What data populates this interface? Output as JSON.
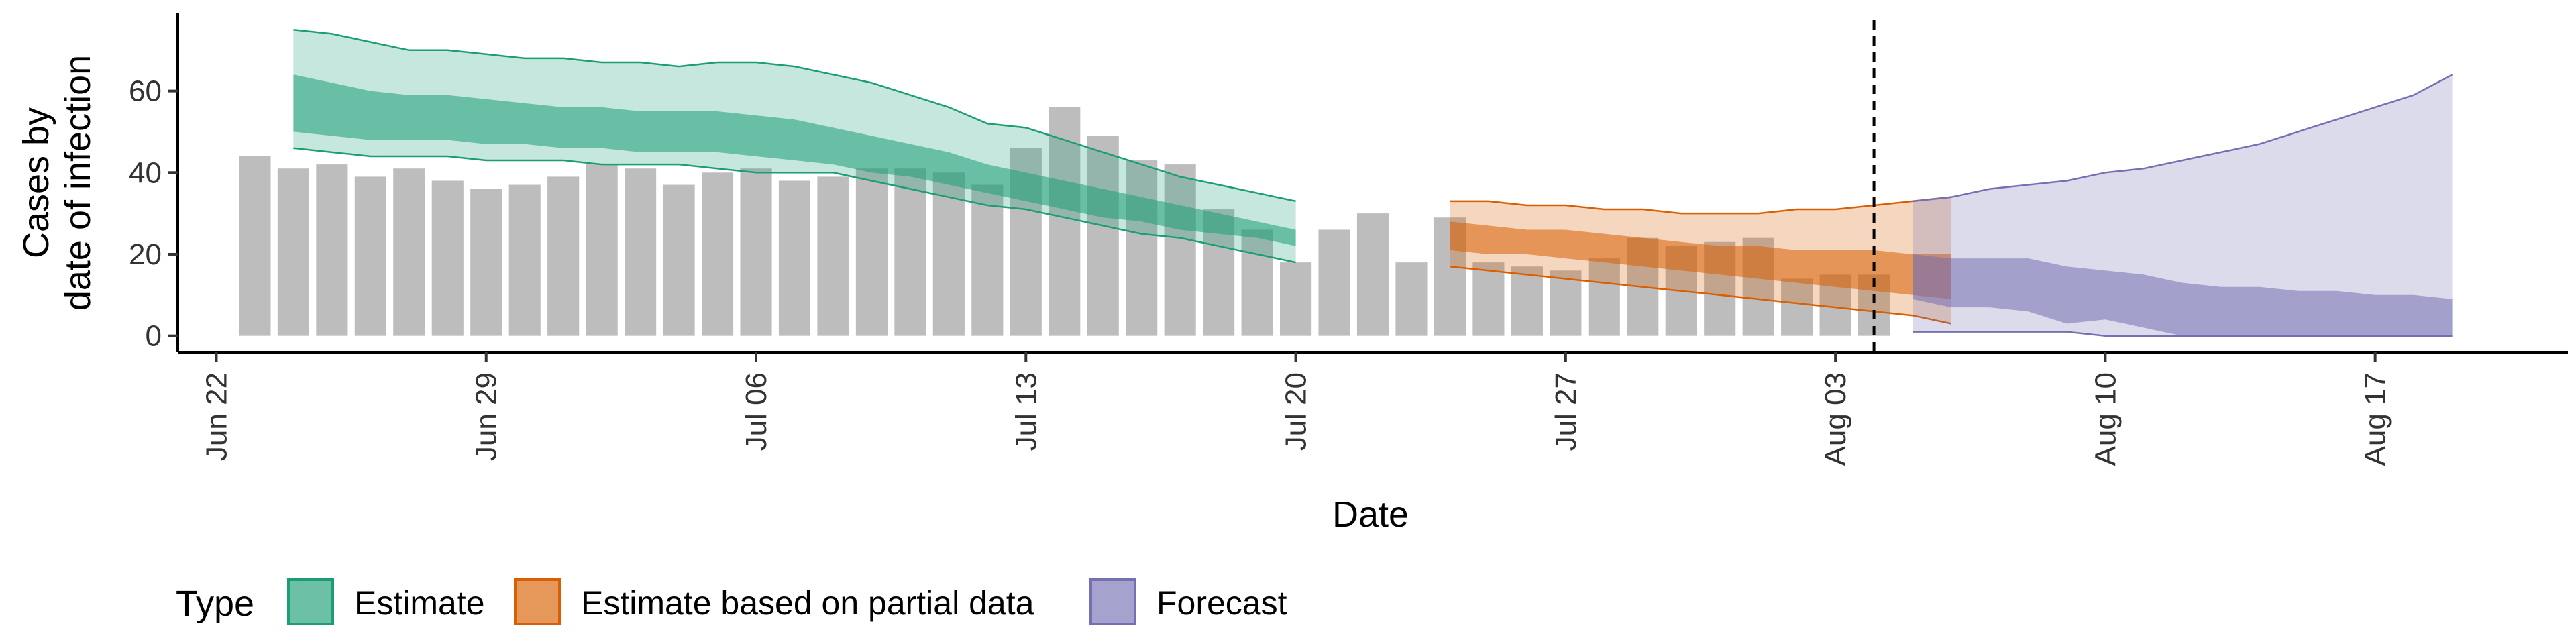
{
  "chart_data": {
    "type": "area",
    "xlabel": "Date",
    "ylabel_lines": [
      "Cases by",
      "date of infection"
    ],
    "x_ticks": [
      "Jun 22",
      "Jun 29",
      "Jul 06",
      "Jul 13",
      "Jul 20",
      "Jul 27",
      "Aug 03",
      "Aug 10",
      "Aug 17"
    ],
    "x_tick_dates": [
      "2020-06-22",
      "2020-06-29",
      "2020-07-06",
      "2020-07-13",
      "2020-07-20",
      "2020-07-27",
      "2020-08-03",
      "2020-08-10",
      "2020-08-17"
    ],
    "x_range": [
      "2020-06-21",
      "2020-08-22"
    ],
    "y_ticks": [
      0,
      20,
      40,
      60
    ],
    "y_range": [
      -4,
      79
    ],
    "grid": false,
    "vline_date": "2020-08-04",
    "legend": {
      "title": "Type",
      "position": "bottom",
      "items": [
        "Estimate",
        "Estimate based on partial data",
        "Forecast"
      ]
    },
    "colors": {
      "bar": "#bdbdbd",
      "estimate_fill": "#1b9e77",
      "estimate_line": "#1b9e77",
      "partial_fill": "#d95f02",
      "partial_line": "#d95f02",
      "forecast_fill": "#7570b3",
      "forecast_line": "#7570b3"
    },
    "bars": {
      "start_date": "2020-06-23",
      "values": [
        44,
        41,
        42,
        39,
        41,
        38,
        36,
        37,
        39,
        42,
        41,
        37,
        40,
        41,
        38,
        39,
        41,
        41,
        40,
        37,
        46,
        56,
        49,
        43,
        42,
        31,
        26,
        18,
        26,
        30,
        18,
        29,
        18,
        17,
        16,
        19,
        24,
        22,
        23,
        24,
        14,
        15,
        15
      ]
    },
    "series": [
      {
        "name": "Estimate",
        "start_date": "2020-06-24",
        "outer_upper": [
          75,
          74,
          72,
          70,
          70,
          69,
          68,
          68,
          67,
          67,
          66,
          67,
          67,
          66,
          64,
          62,
          59,
          56,
          52,
          51,
          48,
          45,
          42,
          39,
          37,
          35,
          33
        ],
        "outer_lower": [
          46,
          45,
          44,
          44,
          44,
          43,
          43,
          43,
          42,
          42,
          42,
          41,
          40,
          40,
          40,
          38,
          36,
          34,
          32,
          31,
          29,
          27,
          25,
          24,
          22,
          20,
          18
        ],
        "inner_upper": [
          64,
          62,
          60,
          59,
          59,
          58,
          57,
          56,
          56,
          55,
          55,
          55,
          54,
          53,
          51,
          49,
          47,
          45,
          42,
          40,
          38,
          36,
          34,
          32,
          30,
          28,
          26
        ],
        "inner_lower": [
          50,
          49,
          48,
          48,
          48,
          47,
          47,
          46,
          46,
          45,
          45,
          45,
          44,
          43,
          42,
          40,
          39,
          37,
          35,
          33,
          31,
          29,
          28,
          26,
          25,
          24,
          22
        ]
      },
      {
        "name": "Estimate based on partial data",
        "start_date": "2020-07-24",
        "outer_upper": [
          33,
          33,
          32,
          32,
          31,
          31,
          30,
          30,
          30,
          31,
          31,
          32,
          33,
          34
        ],
        "outer_lower": [
          17,
          16,
          15,
          14,
          13,
          12,
          11,
          10,
          9,
          8,
          7,
          6,
          5,
          3
        ],
        "inner_upper": [
          28,
          27,
          26,
          26,
          25,
          24,
          23,
          22,
          22,
          21,
          21,
          21,
          20,
          20
        ],
        "inner_lower": [
          21,
          20,
          20,
          19,
          18,
          17,
          16,
          15,
          14,
          13,
          12,
          11,
          10,
          9
        ]
      },
      {
        "name": "Forecast",
        "start_date": "2020-08-05",
        "outer_upper": [
          33,
          34,
          36,
          37,
          38,
          40,
          41,
          43,
          45,
          47,
          50,
          53,
          56,
          59,
          64
        ],
        "outer_lower": [
          1,
          1,
          1,
          1,
          1,
          0,
          0,
          0,
          0,
          0,
          0,
          0,
          0,
          0,
          0
        ],
        "inner_upper": [
          20,
          19,
          19,
          19,
          17,
          16,
          15,
          13,
          12,
          12,
          11,
          11,
          10,
          10,
          9
        ],
        "inner_lower": [
          9,
          7,
          7,
          6,
          3,
          4,
          2,
          0,
          0,
          0,
          0,
          0,
          0,
          0,
          0
        ]
      }
    ]
  }
}
